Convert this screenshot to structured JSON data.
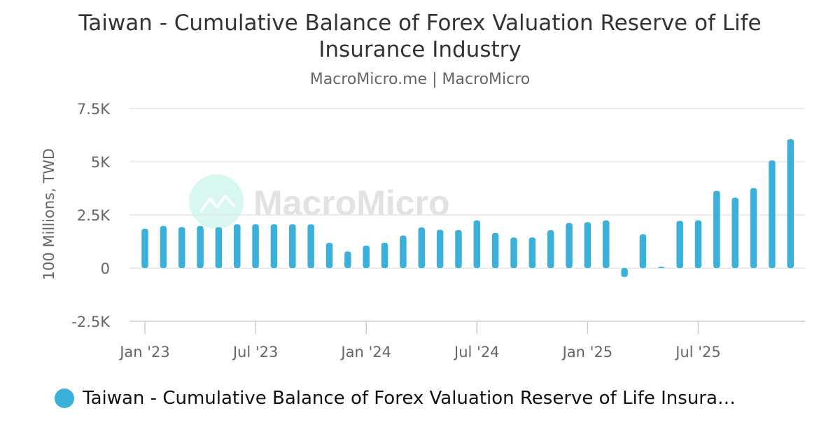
{
  "title": "Taiwan - Cumulative Balance of Forex Valuation Reserve of Life Insurance Industry",
  "subtitle": "MacroMicro.me | MacroMicro",
  "watermark": "MacroMicro",
  "colors": {
    "series": "#3bb0da",
    "grid": "#e6e6e6",
    "axis_text": "#666666",
    "watermark_icon": "#7fe3cf"
  },
  "legend": {
    "label": "Taiwan - Cumulative Balance of Forex Valuation Reserve of Life Insura…"
  },
  "chart_data": {
    "type": "bar",
    "ylabel": "100 Millions, TWD",
    "ylim": [
      -2500,
      7500
    ],
    "yticks": [
      {
        "value": 7500,
        "label": "7.5K"
      },
      {
        "value": 5000,
        "label": "5K"
      },
      {
        "value": 2500,
        "label": "2.5K"
      },
      {
        "value": 0,
        "label": "0"
      },
      {
        "value": -2500,
        "label": "-2.5K"
      }
    ],
    "xticks": [
      {
        "index": 0,
        "label": "Jan '23"
      },
      {
        "index": 6,
        "label": "Jul '23"
      },
      {
        "index": 12,
        "label": "Jan '24"
      },
      {
        "index": 18,
        "label": "Jul '24"
      },
      {
        "index": 24,
        "label": "Jan '25"
      },
      {
        "index": 30,
        "label": "Jul '25"
      }
    ],
    "grid": true,
    "legend_position": "bottom-left",
    "series": [
      {
        "name": "Taiwan - Cumulative Balance of Forex Valuation Reserve of Life Insurance Industry",
        "categories": [
          "2023-01",
          "2023-02",
          "2023-03",
          "2023-04",
          "2023-05",
          "2023-06",
          "2023-07",
          "2023-08",
          "2023-09",
          "2023-10",
          "2023-11",
          "2023-12",
          "2024-01",
          "2024-02",
          "2024-03",
          "2024-04",
          "2024-05",
          "2024-06",
          "2024-07",
          "2024-08",
          "2024-09",
          "2024-10",
          "2024-11",
          "2024-12",
          "2025-01",
          "2025-02",
          "2025-03",
          "2025-04",
          "2025-05",
          "2025-06",
          "2025-07",
          "2025-08",
          "2025-09",
          "2025-10",
          "2025-11",
          "2025-12"
        ],
        "values": [
          1850,
          1980,
          1930,
          1980,
          1920,
          2060,
          2060,
          2060,
          2060,
          2060,
          1190,
          780,
          1060,
          1190,
          1530,
          1910,
          1800,
          1790,
          2240,
          1650,
          1440,
          1440,
          1780,
          2120,
          2160,
          2240,
          -420,
          1590,
          60,
          2220,
          2240,
          3630,
          3310,
          3760,
          5060,
          6060
        ]
      }
    ]
  }
}
